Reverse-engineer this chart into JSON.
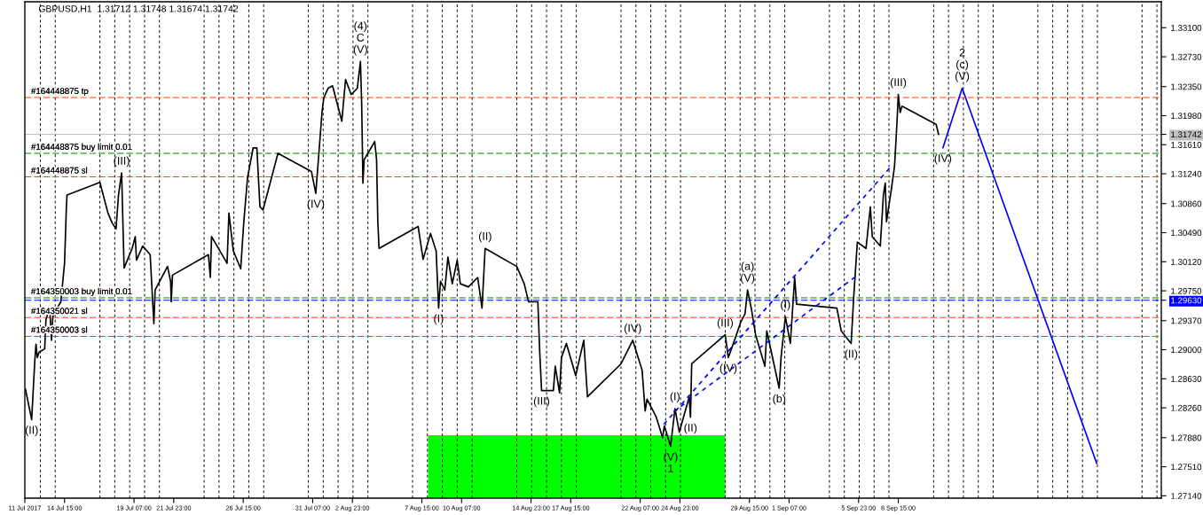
{
  "chart_data": {
    "type": "line",
    "title": "GBPUSD,H1  1.31712 1.31748 1.31674 1.31742",
    "xlim": [
      "2017-07-11T23:00",
      "2017-09-26T07:00"
    ],
    "ylim": [
      1.2711,
      1.3343
    ],
    "xticks": [
      {
        "value": "2017-07-11T23:00",
        "label": "11 Jul 2017"
      },
      {
        "value": "2017-07-14T15:00",
        "label": "14 Jul 15:00"
      },
      {
        "value": "2017-07-19T07:00",
        "label": "19 Jul 07:00"
      },
      {
        "value": "2017-07-21T23:00",
        "label": "21 Jul 23:00"
      },
      {
        "value": "2017-07-26T15:00",
        "label": "26 Jul 15:00"
      },
      {
        "value": "2017-07-31T07:00",
        "label": "31 Jul 07:00"
      },
      {
        "value": "2017-08-02T23:00",
        "label": "2 Aug 23:00"
      },
      {
        "value": "2017-08-07T15:00",
        "label": "7 Aug 15:00"
      },
      {
        "value": "2017-08-10T07:00",
        "label": "10 Aug 07:00"
      },
      {
        "value": "2017-08-14T23:00",
        "label": "14 Aug 23:00"
      },
      {
        "value": "2017-08-17T15:00",
        "label": "17 Aug 15:00"
      },
      {
        "value": "2017-08-22T07:00",
        "label": "22 Aug 07:00"
      },
      {
        "value": "2017-08-24T23:00",
        "label": "24 Aug 23:00"
      },
      {
        "value": "2017-08-29T15:00",
        "label": "29 Aug 15:00"
      },
      {
        "value": "2017-09-01T07:00",
        "label": "1 Sep 07:00"
      },
      {
        "value": "2017-09-05T23:00",
        "label": "5 Sep 23:00"
      },
      {
        "value": "2017-09-08T15:00",
        "label": "8 Sep 15:00"
      }
    ],
    "yticks": [
      {
        "value": 1.331,
        "label": "1.33100"
      },
      {
        "value": 1.3273,
        "label": "1.32730"
      },
      {
        "value": 1.3235,
        "label": "1.32350"
      },
      {
        "value": 1.3198,
        "label": "1.31980"
      },
      1.31742,
      {
        "value": 1.3161,
        "label": "1.31610"
      },
      {
        "value": 1.3124,
        "label": "1.31240"
      },
      {
        "value": 1.3086,
        "label": "1.30860"
      },
      {
        "value": 1.3049,
        "label": "1.30490"
      },
      {
        "value": 1.3012,
        "label": "1.30120"
      },
      {
        "value": 1.2975,
        "label": "1.29750"
      },
      {
        "value": 1.2963,
        "label": "1.29630"
      },
      {
        "value": 1.2937,
        "label": "1.29370"
      },
      {
        "value": 1.29,
        "label": "1.29000"
      },
      {
        "value": 1.2863,
        "label": "1.28630"
      },
      {
        "value": 1.2826,
        "label": "1.28260"
      },
      {
        "value": 1.2788,
        "label": "1.27880"
      },
      {
        "value": 1.2751,
        "label": "1.27510"
      },
      {
        "value": 1.2714,
        "label": "1.27140"
      }
    ],
    "series": [
      {
        "color": "#00ff00",
        "type": "area",
        "x": [
          "2017-08-08T01:00",
          "2017-08-28T00:00"
        ],
        "values": [
          1.2791,
          1.2791
        ]
      },
      {
        "color": "#000000",
        "x": [
          "2017-07-12T00:00",
          "2017-07-12T10:00",
          "2017-07-12T15:00",
          "2017-07-12T17:00",
          "2017-07-12T19:00",
          "2017-07-12T22:00",
          "2017-07-13T07:00",
          "2017-07-13T09:00",
          "2017-07-13T15:00",
          "2017-07-13T18:00",
          "2017-07-13T20:00",
          "2017-07-14T03:00",
          "2017-07-14T09:00",
          "2017-07-14T15:00",
          "2017-07-14T18:00",
          "2017-07-14T19:00",
          "2017-07-17T00:00",
          "2017-07-17T13:00",
          "2017-07-17T20:00",
          "2017-07-18T02:00",
          "2017-07-18T06:00",
          "2017-07-18T11:00",
          "2017-07-18T15:00",
          "2017-07-19T04:00",
          "2017-07-19T09:00",
          "2017-07-19T11:00",
          "2017-07-19T21:00",
          "2017-07-20T09:00",
          "2017-07-20T15:00",
          "2017-07-20T17:00",
          "2017-07-21T13:00",
          "2017-07-21T18:00",
          "2017-07-21T19:00",
          "2017-07-21T21:00",
          "2017-07-24T07:00",
          "2017-07-24T10:00",
          "2017-07-24T12:00",
          "2017-07-25T05:00",
          "2017-07-25T13:00",
          "2017-07-25T16:00",
          "2017-07-25T23:00",
          "2017-07-26T11:00",
          "2017-07-26T16:00",
          "2017-07-26T22:00",
          "2017-07-27T07:00",
          "2017-07-27T13:00",
          "2017-07-27T18:00",
          "2017-07-27T23:00",
          "2017-07-28T23:00",
          "2017-07-31T05:00",
          "2017-07-31T12:00",
          "2017-07-31T17:00",
          "2017-07-31T22:00",
          "2017-08-01T01:00",
          "2017-08-01T08:00",
          "2017-08-01T15:00",
          "2017-08-02T06:00",
          "2017-08-02T12:00",
          "2017-08-02T21:00",
          "2017-08-03T07:00",
          "2017-08-03T12:00",
          "2017-08-03T14:00",
          "2017-08-03T16:00",
          "2017-08-03T18:00",
          "2017-08-04T11:00",
          "2017-08-04T14:00",
          "2017-08-04T16:00",
          "2017-08-04T18:00",
          "2017-08-07T09:00",
          "2017-08-07T17:00",
          "2017-08-08T05:00",
          "2017-08-08T14:00",
          "2017-08-08T18:00",
          "2017-08-08T21:00",
          "2017-08-09T04:00",
          "2017-08-09T09:00",
          "2017-08-09T16:00",
          "2017-08-10T00:00",
          "2017-08-10T05:00",
          "2017-08-10T18:00",
          "2017-08-11T09:00",
          "2017-08-11T16:00",
          "2017-08-11T21:00",
          "2017-08-14T00:00",
          "2017-08-14T12:00",
          "2017-08-14T19:00",
          "2017-08-15T10:00",
          "2017-08-15T13:00",
          "2017-08-15T16:00",
          "2017-08-16T11:00",
          "2017-08-16T14:00",
          "2017-08-16T21:00",
          "2017-08-17T00:00",
          "2017-08-17T08:00",
          "2017-08-17T23:00",
          "2017-08-18T12:00",
          "2017-08-18T18:00",
          "2017-08-21T00:00",
          "2017-08-21T19:00",
          "2017-08-22T10:00",
          "2017-08-22T15:00",
          "2017-08-22T18:00",
          "2017-08-23T09:00",
          "2017-08-23T19:00",
          "2017-08-23T22:00",
          "2017-08-24T08:00",
          "2017-08-24T15:00",
          "2017-08-24T22:00",
          "2017-08-25T14:00",
          "2017-08-25T16:00",
          "2017-08-25T18:00",
          "2017-08-28T00:00",
          "2017-08-28T05:00",
          "2017-08-28T15:00",
          "2017-08-29T01:00",
          "2017-08-29T08:00",
          "2017-08-29T12:00",
          "2017-08-29T18:00",
          "2017-08-30T01:00",
          "2017-08-30T16:00",
          "2017-08-30T19:00",
          "2017-08-31T15:00",
          "2017-08-31T18:00",
          "2017-09-01T01:00",
          "2017-09-01T09:00",
          "2017-09-01T16:00",
          "2017-09-01T19:00",
          "2017-09-04T12:00",
          "2017-09-04T19:00",
          "2017-09-05T11:00",
          "2017-09-05T15:00",
          "2017-09-05T21:00",
          "2017-09-06T11:00",
          "2017-09-06T18:00",
          "2017-09-06T21:00",
          "2017-09-07T10:00",
          "2017-09-07T15:00",
          "2017-09-07T18:00",
          "2017-09-07T20:00",
          "2017-09-08T04:00",
          "2017-09-08T09:00",
          "2017-09-08T13:00",
          "2017-09-08T15:00",
          "2017-09-08T18:00",
          "2017-09-08T21:00",
          "2017-09-11T04:00",
          "2017-09-11T08:00"
        ],
        "values": [
          1.285,
          1.2811,
          1.2885,
          1.2907,
          1.289,
          1.2897,
          1.2901,
          1.2938,
          1.2953,
          1.2912,
          1.2942,
          1.2953,
          1.2961,
          1.301,
          1.3082,
          1.3097,
          1.3113,
          1.3074,
          1.3061,
          1.3054,
          1.3097,
          1.3125,
          1.3004,
          1.3029,
          1.3044,
          1.3014,
          1.3032,
          1.3021,
          1.2933,
          1.2976,
          1.3006,
          1.2987,
          1.2961,
          1.2995,
          1.3021,
          1.2992,
          1.3044,
          1.3021,
          1.301,
          1.3074,
          1.3026,
          1.3003,
          1.3063,
          1.3119,
          1.3157,
          1.3157,
          1.3082,
          1.3078,
          1.315,
          1.3127,
          1.3099,
          1.315,
          1.3202,
          1.3221,
          1.3233,
          1.3236,
          1.3191,
          1.3244,
          1.3225,
          1.3233,
          1.3267,
          1.3213,
          1.3112,
          1.3142,
          1.3165,
          1.3142,
          1.3063,
          1.3029,
          1.3057,
          1.3015,
          1.3048,
          1.3026,
          1.2953,
          1.2987,
          1.2976,
          1.3018,
          1.2984,
          1.3014,
          1.2984,
          1.298,
          1.2992,
          1.2953,
          1.3029,
          1.3006,
          1.2984,
          1.2961,
          1.2961,
          1.2897,
          1.2848,
          1.2848,
          1.2879,
          1.2845,
          1.289,
          1.2908,
          1.2867,
          1.2912,
          1.284,
          1.2882,
          1.2912,
          1.2874,
          1.2822,
          1.2837,
          1.2814,
          1.2788,
          1.2803,
          1.2777,
          1.2825,
          1.2795,
          1.284,
          1.2814,
          1.2882,
          1.2919,
          1.289,
          1.2912,
          1.2935,
          1.2946,
          1.2976,
          1.2953,
          1.2919,
          1.2879,
          1.2924,
          1.2851,
          1.289,
          1.2942,
          1.2908,
          1.2992,
          1.2958,
          1.2953,
          1.2924,
          1.2908,
          1.2965,
          1.3037,
          1.3029,
          1.3082,
          1.3044,
          1.3032,
          1.3097,
          1.3112,
          1.3063,
          1.3105,
          1.3134,
          1.3191,
          1.3225,
          1.3202,
          1.321,
          1.3187,
          1.3174
        ]
      },
      {
        "color": "#0000ff",
        "line_style": "dotted",
        "x": [
          "2017-08-23T21:00",
          "2017-09-08T03:00"
        ],
        "values": [
          1.2805,
          1.3133
        ]
      },
      {
        "color": "#0000ff",
        "line_style": "dotted",
        "x": [
          "2017-08-24T13:00",
          "2017-09-05T18:00"
        ],
        "values": [
          1.2821,
          1.2993
        ]
      },
      {
        "color": "#0000ff",
        "x": [
          "2017-09-11T15:00",
          "2017-09-12T22:00",
          "2017-09-21T23:00"
        ],
        "values": [
          1.3157,
          1.3233,
          1.2755
        ]
      }
    ],
    "ref_lines": [
      {
        "axis": "y",
        "value": 1.3221,
        "label": "#164448875 tp",
        "color": "#ff4500",
        "line_style": "dashed"
      },
      {
        "axis": "y",
        "value": 1.31742,
        "color": "#c0c0c0",
        "line_style": "solid"
      },
      {
        "axis": "y",
        "value": 1.315,
        "label": "#164448875 buy limit 0.01",
        "color": "#008000",
        "line_style": "dashed"
      },
      {
        "axis": "y",
        "value": 1.312,
        "label": "#164448875 sl",
        "color": "#ff4500",
        "line_style": "dashed"
      },
      {
        "axis": "y",
        "value": 1.2966,
        "label": "#164350003 buy limit 0.01",
        "color": "#008000",
        "line_style": "dashed"
      },
      {
        "axis": "y",
        "value": 1.2963,
        "color": "#0000ff",
        "line_style": "dashed"
      },
      {
        "axis": "y",
        "value": 1.2941,
        "label": "#164350021 sl",
        "color": "#ff4500",
        "line_style": "dashed"
      },
      {
        "axis": "y",
        "value": 1.2917,
        "label": "#164350003 sl",
        "color": "#ff4500",
        "line_style": "dashed"
      },
      {
        "axis": "x",
        "value": "2017-07-13",
        "color": "#000000",
        "line_style": "dotted"
      },
      {
        "axis": "x",
        "value": "2017-07-14",
        "color": "#000000",
        "line_style": "dotted"
      },
      {
        "axis": "x",
        "value": "2017-07-17",
        "color": "#000000",
        "line_style": "dotted"
      },
      {
        "axis": "x",
        "value": "2017-07-18",
        "color": "#000000",
        "line_style": "dotted"
      },
      {
        "axis": "x",
        "value": "2017-07-19",
        "color": "#000000",
        "line_style": "dotted"
      },
      {
        "axis": "x",
        "value": "2017-07-20",
        "color": "#000000",
        "line_style": "dotted"
      },
      {
        "axis": "x",
        "value": "2017-07-21",
        "color": "#000000",
        "line_style": "dotted"
      },
      {
        "axis": "x",
        "value": "2017-07-24",
        "color": "#000000",
        "line_style": "dotted"
      },
      {
        "axis": "x",
        "value": "2017-07-25",
        "color": "#000000",
        "line_style": "dotted"
      },
      {
        "axis": "x",
        "value": "2017-07-26",
        "color": "#000000",
        "line_style": "dotted"
      },
      {
        "axis": "x",
        "value": "2017-07-27",
        "color": "#000000",
        "line_style": "dotted"
      },
      {
        "axis": "x",
        "value": "2017-07-28",
        "color": "#000000",
        "line_style": "dotted"
      },
      {
        "axis": "x",
        "value": "2017-07-31",
        "color": "#000000",
        "line_style": "dotted"
      },
      {
        "axis": "x",
        "value": "2017-08-01",
        "color": "#000000",
        "line_style": "dotted"
      },
      {
        "axis": "x",
        "value": "2017-08-02",
        "color": "#000000",
        "line_style": "dotted"
      },
      {
        "axis": "x",
        "value": "2017-08-03",
        "color": "#000000",
        "line_style": "dotted"
      },
      {
        "axis": "x",
        "value": "2017-08-04",
        "color": "#000000",
        "line_style": "dotted"
      },
      {
        "axis": "x",
        "value": "2017-08-07",
        "color": "#000000",
        "line_style": "dotted"
      },
      {
        "axis": "x",
        "value": "2017-08-08",
        "color": "#000000",
        "line_style": "dotted"
      },
      {
        "axis": "x",
        "value": "2017-08-09",
        "color": "#000000",
        "line_style": "dotted"
      },
      {
        "axis": "x",
        "value": "2017-08-10",
        "color": "#000000",
        "line_style": "dotted"
      },
      {
        "axis": "x",
        "value": "2017-08-11",
        "color": "#000000",
        "line_style": "dotted"
      },
      {
        "axis": "x",
        "value": "2017-08-14",
        "color": "#000000",
        "line_style": "dotted"
      },
      {
        "axis": "x",
        "value": "2017-08-15",
        "color": "#000000",
        "line_style": "dotted"
      },
      {
        "axis": "x",
        "value": "2017-08-16",
        "color": "#000000",
        "line_style": "dotted"
      },
      {
        "axis": "x",
        "value": "2017-08-17",
        "color": "#000000",
        "line_style": "dotted"
      },
      {
        "axis": "x",
        "value": "2017-08-18",
        "color": "#000000",
        "line_style": "dotted"
      },
      {
        "axis": "x",
        "value": "2017-08-21",
        "color": "#000000",
        "line_style": "dotted"
      },
      {
        "axis": "x",
        "value": "2017-08-22",
        "color": "#000000",
        "line_style": "dotted"
      },
      {
        "axis": "x",
        "value": "2017-08-23",
        "color": "#000000",
        "line_style": "dotted"
      },
      {
        "axis": "x",
        "value": "2017-08-24",
        "color": "#000000",
        "line_style": "dotted"
      },
      {
        "axis": "x",
        "value": "2017-08-25",
        "color": "#000000",
        "line_style": "dotted"
      },
      {
        "axis": "x",
        "value": "2017-08-28",
        "color": "#000000",
        "line_style": "dotted"
      },
      {
        "axis": "x",
        "value": "2017-08-29",
        "color": "#000000",
        "line_style": "dotted"
      },
      {
        "axis": "x",
        "value": "2017-08-30",
        "color": "#000000",
        "line_style": "dotted"
      },
      {
        "axis": "x",
        "value": "2017-08-31",
        "color": "#000000",
        "line_style": "dotted"
      },
      {
        "axis": "x",
        "value": "2017-09-01",
        "color": "#000000",
        "line_style": "dotted"
      },
      {
        "axis": "x",
        "value": "2017-09-04",
        "color": "#000000",
        "line_style": "dotted"
      },
      {
        "axis": "x",
        "value": "2017-09-05",
        "color": "#000000",
        "line_style": "dotted"
      },
      {
        "axis": "x",
        "value": "2017-09-06",
        "color": "#000000",
        "line_style": "dotted"
      },
      {
        "axis": "x",
        "value": "2017-09-07",
        "color": "#000000",
        "line_style": "dotted"
      },
      {
        "axis": "x",
        "value": "2017-09-08",
        "color": "#000000",
        "line_style": "dotted"
      },
      {
        "axis": "x",
        "value": "2017-09-11",
        "color": "#000000",
        "line_style": "dotted"
      },
      {
        "axis": "x",
        "value": "2017-09-12",
        "color": "#000000",
        "line_style": "dotted"
      },
      {
        "axis": "x",
        "value": "2017-09-13",
        "color": "#000000",
        "line_style": "dotted"
      },
      {
        "axis": "x",
        "value": "2017-09-14",
        "color": "#000000",
        "line_style": "dotted"
      },
      {
        "axis": "x",
        "value": "2017-09-15",
        "color": "#000000",
        "line_style": "dotted"
      },
      {
        "axis": "x",
        "value": "2017-09-18",
        "color": "#000000",
        "line_style": "dotted"
      },
      {
        "axis": "x",
        "value": "2017-09-19",
        "color": "#000000",
        "line_style": "dotted"
      },
      {
        "axis": "x",
        "value": "2017-09-20",
        "color": "#000000",
        "line_style": "dotted"
      },
      {
        "axis": "x",
        "value": "2017-09-21",
        "color": "#000000",
        "line_style": "dotted"
      },
      {
        "axis": "x",
        "value": "2017-09-22",
        "color": "#000000",
        "line_style": "dotted"
      },
      {
        "axis": "x",
        "value": "2017-09-25",
        "color": "#000000",
        "line_style": "dotted"
      },
      {
        "axis": "x",
        "value": "2017-09-26",
        "color": "#000000",
        "line_style": "dotted"
      }
    ],
    "annotations": [
      {
        "text": "(II)",
        "x": "2017-07-12T10:00",
        "y": 1.2811
      },
      {
        "text": "(III)",
        "x": "2017-07-18T11:00",
        "y": 1.3125
      },
      {
        "text": "(IV)",
        "x": "2017-07-31T12:00",
        "y": 1.3099
      },
      {
        "text": "(V)",
        "x": "2017-08-03T12:00",
        "y": 1.3267
      },
      {
        "text": "C",
        "x": "2017-08-03T12:00",
        "y": 1.3267
      },
      {
        "text": "(4)",
        "x": "2017-08-03T12:00",
        "y": 1.3267
      },
      {
        "text": "(I)",
        "x": "2017-08-08T18:00",
        "y": 1.2953
      },
      {
        "text": "(II)",
        "x": "2017-08-11T21:00",
        "y": 1.3029
      },
      {
        "text": "(III)",
        "x": "2017-08-15T16:00",
        "y": 1.2848
      },
      {
        "text": "(IV)",
        "x": "2017-08-21T19:00",
        "y": 1.2912
      },
      {
        "text": "(V)",
        "x": "2017-08-24T08:00",
        "y": 1.2777
      },
      {
        "text": "1",
        "x": "2017-08-24T08:00",
        "y": 1.2777
      },
      {
        "text": "(I)",
        "x": "2017-08-24T15:00",
        "y": 1.2825
      },
      {
        "text": "(II)",
        "x": "2017-08-25T16:00",
        "y": 1.2814
      },
      {
        "text": "(III)",
        "x": "2017-08-28T00:00",
        "y": 1.2919
      },
      {
        "text": "(IV)",
        "x": "2017-08-28T05:00",
        "y": 1.289
      },
      {
        "text": "(V)",
        "x": "2017-08-29T12:00",
        "y": 1.2976
      },
      {
        "text": "(a)",
        "x": "2017-08-29T12:00",
        "y": 1.2976
      },
      {
        "text": "(b)",
        "x": "2017-08-31T15:00",
        "y": 1.2851
      },
      {
        "text": "(I)",
        "x": "2017-09-01T01:00",
        "y": 1.2942
      },
      {
        "text": "(II)",
        "x": "2017-09-05T11:00",
        "y": 1.2908
      },
      {
        "text": "(III)",
        "x": "2017-09-08T15:00",
        "y": 1.3225
      },
      {
        "text": "(IV)",
        "x": "2017-09-11T15:00",
        "y": 1.3157
      },
      {
        "text": "(V)",
        "x": "2017-09-12T22:00",
        "y": 1.3233
      },
      {
        "text": "(c)",
        "x": "2017-09-12T22:00",
        "y": 1.3233
      },
      {
        "text": "2",
        "x": "2017-09-12T22:00",
        "y": 1.3233
      }
    ]
  }
}
